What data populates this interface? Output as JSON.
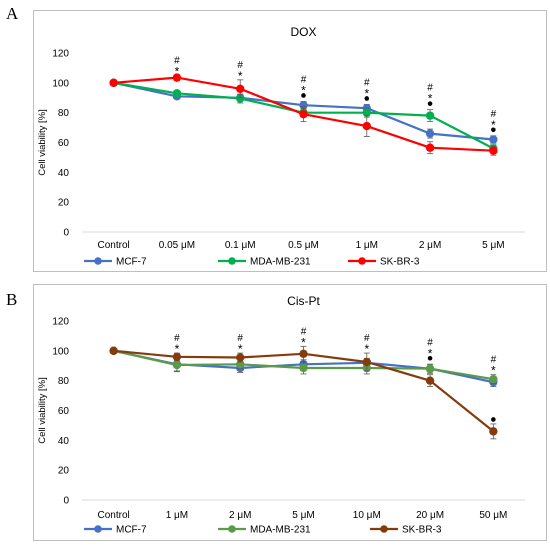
{
  "panels": [
    {
      "letter": "A",
      "chart_data": {
        "type": "line",
        "title": "DOX",
        "ylabel": "Cell viability [%]",
        "xlabel": "",
        "categories": [
          "Control",
          "0.05 μM",
          "0.1 μM",
          "0.5 μM",
          "1 μM",
          "2 μM",
          "5 μM"
        ],
        "ylim": [
          0,
          120
        ],
        "yticks": [
          0,
          20,
          40,
          60,
          80,
          100,
          120
        ],
        "grid": false,
        "legend": "bottom",
        "series": [
          {
            "name": "MCF-7",
            "color": "#4472c4",
            "values": [
              100,
              91,
              90,
              85,
              83,
              66,
              62
            ],
            "errors": [
              0,
              1.5,
              2,
              2.5,
              2.5,
              3,
              2.5
            ]
          },
          {
            "name": "MDA-MB-231",
            "color": "#00b050",
            "values": [
              100,
              93,
              89.5,
              80,
              80,
              78,
              56
            ],
            "errors": [
              0,
              1.5,
              3,
              3,
              3,
              4,
              2.5
            ]
          },
          {
            "name": "SK-BR-3",
            "color": "#ff0000",
            "values": [
              100,
              103.5,
              96,
              79,
              71,
              56.5,
              54.5
            ],
            "errors": [
              0,
              1.5,
              6,
              5,
              7,
              4,
              3
            ]
          }
        ],
        "annotations": [
          {
            "category": 1,
            "marks": [
              "*",
              "#"
            ]
          },
          {
            "category": 2,
            "marks": [
              "*",
              "#"
            ]
          },
          {
            "category": 3,
            "marks": [
              "•",
              "*",
              "#"
            ]
          },
          {
            "category": 4,
            "marks": [
              "•",
              "*",
              "#"
            ]
          },
          {
            "category": 5,
            "marks": [
              "•",
              "*",
              "#"
            ]
          },
          {
            "category": 6,
            "marks": [
              "•",
              "*",
              "#"
            ]
          }
        ]
      }
    },
    {
      "letter": "B",
      "chart_data": {
        "type": "line",
        "title": "Cis-Pt",
        "ylabel": "Cell viability [%]",
        "xlabel": "",
        "categories": [
          "Control",
          "1 μM",
          "2 μM",
          "5 μM",
          "10 μM",
          "20 μM",
          "50 μM"
        ],
        "ylim": [
          0,
          120
        ],
        "yticks": [
          0,
          20,
          40,
          60,
          80,
          100,
          120
        ],
        "grid": false,
        "legend": "bottom",
        "series": [
          {
            "name": "MCF-7",
            "color": "#4472c4",
            "values": [
              100,
              91,
              88.5,
              91,
              92,
              88,
              79
            ],
            "errors": [
              0,
              5,
              3,
              3,
              3,
              3,
              3
            ]
          },
          {
            "name": "MDA-MB-231",
            "color": "#5b9a47",
            "values": [
              100,
              90.5,
              91,
              88.5,
              88.5,
              88,
              81
            ],
            "errors": [
              0,
              4,
              3,
              4,
              4,
              3,
              3
            ]
          },
          {
            "name": "SK-BR-3",
            "color": "#843c0c",
            "values": [
              100,
              96,
              95.5,
              98,
              92.5,
              80,
              46
            ],
            "errors": [
              0,
              2.5,
              3,
              5,
              6,
              4,
              5
            ]
          }
        ],
        "annotations": [
          {
            "category": 1,
            "marks": [
              "*",
              "#"
            ]
          },
          {
            "category": 2,
            "marks": [
              "*",
              "#"
            ]
          },
          {
            "category": 3,
            "marks": [
              "*",
              "#"
            ]
          },
          {
            "category": 4,
            "marks": [
              "*",
              "#"
            ]
          },
          {
            "category": 5,
            "marks": [
              "•",
              "*",
              "#"
            ]
          },
          {
            "category": 6,
            "marks": [
              "*",
              "#"
            ]
          }
        ],
        "extra_marks": [
          {
            "category": 6,
            "value": 54,
            "mark": "•"
          }
        ]
      }
    }
  ]
}
